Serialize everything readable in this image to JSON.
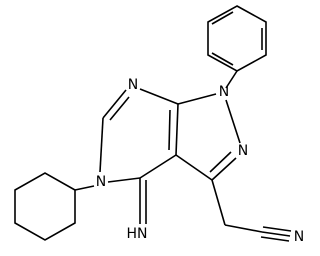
{
  "atoms": {
    "n7": "N",
    "n1": "N",
    "n2": "N",
    "n5": "N",
    "imine": "HN",
    "nitrile": "N"
  }
}
